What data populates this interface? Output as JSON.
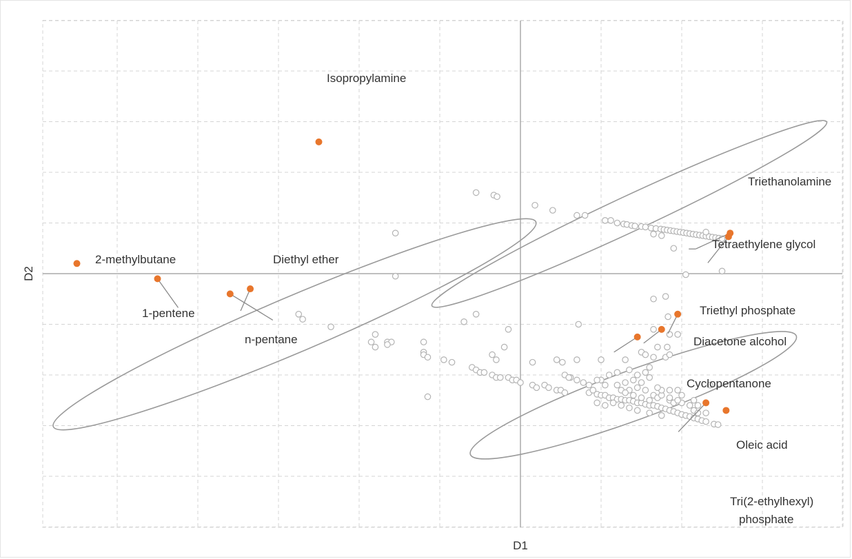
{
  "chart_data": {
    "type": "scatter",
    "xlabel": "D1",
    "ylabel": "D2",
    "xlim": [
      -5.8,
      4.0
    ],
    "ylim": [
      -3.2,
      3.2
    ],
    "grid": true,
    "colors": {
      "highlight": "#e8762c",
      "background_points": "#b3b3b3",
      "grid": "#d4d4d4",
      "axis": "#aaaaaa",
      "ellipse": "#9a9a9a",
      "leader": "#8a8a8a",
      "text": "#333333"
    },
    "highlighted_points": [
      {
        "label": "Isopropylamine",
        "x": -2.5,
        "y": 2.6
      },
      {
        "label": "2-methylbutane",
        "x": -5.5,
        "y": 0.2
      },
      {
        "label": "1-pentene",
        "x": -4.5,
        "y": -0.1
      },
      {
        "label": "Diethyl ether",
        "x": -3.35,
        "y": -0.3
      },
      {
        "label": "n-pentane",
        "x": -3.6,
        "y": -0.4
      },
      {
        "label": "Triethanolamine",
        "x": 2.6,
        "y": 0.8
      },
      {
        "label": "Tetraethylene glycol",
        "x": 2.58,
        "y": 0.73
      },
      {
        "label": "Triethyl phosphate",
        "x": 1.95,
        "y": -0.8
      },
      {
        "label": "Diacetone alcohol",
        "x": 1.75,
        "y": -1.1
      },
      {
        "label": "Cyclopentanone",
        "x": 1.45,
        "y": -1.25
      },
      {
        "label": "Oleic acid",
        "x": 2.3,
        "y": -2.55
      },
      {
        "label": "Tri(2-ethylhexyl) phosphate",
        "x": 2.55,
        "y": -2.7
      }
    ],
    "annotations": {
      "triethyl_phosphate": "Triethyl phosphate",
      "diacetone_alcohol": "Diacetone alcohol",
      "cyclopentanone": "Cyclopentanone",
      "oleic_acid": "Oleic acid",
      "tri_line1": "Tri(2-ethylhexyl)",
      "tri_line2": "phosphate"
    },
    "background_points": [
      [
        -0.55,
        1.6
      ],
      [
        -0.33,
        1.55
      ],
      [
        -0.29,
        1.52
      ],
      [
        0.18,
        1.35
      ],
      [
        0.4,
        1.25
      ],
      [
        0.7,
        1.15
      ],
      [
        0.8,
        1.15
      ],
      [
        1.05,
        1.05
      ],
      [
        1.12,
        1.05
      ],
      [
        1.2,
        1.0
      ],
      [
        1.28,
        0.98
      ],
      [
        1.32,
        0.97
      ],
      [
        1.38,
        0.95
      ],
      [
        1.42,
        0.94
      ],
      [
        1.5,
        0.93
      ],
      [
        1.55,
        0.92
      ],
      [
        1.62,
        0.9
      ],
      [
        1.68,
        0.89
      ],
      [
        1.74,
        0.88
      ],
      [
        1.78,
        0.87
      ],
      [
        1.82,
        0.86
      ],
      [
        1.86,
        0.85
      ],
      [
        1.9,
        0.84
      ],
      [
        1.94,
        0.83
      ],
      [
        1.98,
        0.82
      ],
      [
        2.02,
        0.81
      ],
      [
        2.06,
        0.8
      ],
      [
        2.1,
        0.79
      ],
      [
        2.14,
        0.78
      ],
      [
        2.18,
        0.77
      ],
      [
        2.22,
        0.76
      ],
      [
        2.26,
        0.75
      ],
      [
        2.3,
        0.74
      ],
      [
        2.34,
        0.73
      ],
      [
        2.38,
        0.72
      ],
      [
        2.42,
        0.71
      ],
      [
        2.46,
        0.7
      ],
      [
        2.5,
        0.69
      ],
      [
        1.9,
        0.5
      ],
      [
        1.75,
        0.75
      ],
      [
        1.65,
        0.78
      ],
      [
        2.3,
        0.82
      ],
      [
        2.05,
        -0.02
      ],
      [
        2.5,
        0.05
      ],
      [
        -1.55,
        0.8
      ],
      [
        -1.55,
        -0.05
      ],
      [
        -2.75,
        -0.8
      ],
      [
        -2.7,
        -0.9
      ],
      [
        -2.35,
        -1.05
      ],
      [
        -1.8,
        -1.2
      ],
      [
        -1.85,
        -1.35
      ],
      [
        -1.65,
        -1.35
      ],
      [
        -1.6,
        -1.35
      ],
      [
        -1.8,
        -1.45
      ],
      [
        -1.65,
        -1.4
      ],
      [
        -1.2,
        -1.35
      ],
      [
        -1.2,
        -1.55
      ],
      [
        -1.2,
        -1.6
      ],
      [
        -1.15,
        -1.65
      ],
      [
        -0.95,
        -1.7
      ],
      [
        -0.85,
        -1.75
      ],
      [
        -0.6,
        -1.85
      ],
      [
        -0.55,
        -1.9
      ],
      [
        -0.5,
        -1.95
      ],
      [
        -0.45,
        -1.95
      ],
      [
        -0.35,
        -2.0
      ],
      [
        -0.3,
        -2.05
      ],
      [
        -0.25,
        -2.05
      ],
      [
        -0.15,
        -2.05
      ],
      [
        -0.1,
        -2.1
      ],
      [
        -0.05,
        -2.1
      ],
      [
        0.0,
        -2.15
      ],
      [
        -0.35,
        -1.6
      ],
      [
        -0.3,
        -1.7
      ],
      [
        -0.7,
        -0.95
      ],
      [
        -0.15,
        -1.1
      ],
      [
        -0.2,
        -1.45
      ],
      [
        -1.15,
        -2.43
      ],
      [
        -0.55,
        -0.8
      ],
      [
        0.15,
        -1.75
      ],
      [
        0.45,
        -1.7
      ],
      [
        0.52,
        -1.75
      ],
      [
        0.7,
        -1.7
      ],
      [
        0.72,
        -1.0
      ],
      [
        1.0,
        -1.7
      ],
      [
        1.3,
        -1.7
      ],
      [
        1.5,
        -1.55
      ],
      [
        1.55,
        -1.6
      ],
      [
        1.65,
        -1.65
      ],
      [
        1.6,
        -1.85
      ],
      [
        1.55,
        -1.95
      ],
      [
        1.6,
        -2.05
      ],
      [
        1.8,
        -1.65
      ],
      [
        1.85,
        -1.6
      ],
      [
        1.7,
        -1.45
      ],
      [
        1.82,
        -1.45
      ],
      [
        1.65,
        -1.1
      ],
      [
        1.85,
        -1.2
      ],
      [
        1.95,
        -1.2
      ],
      [
        1.8,
        -0.45
      ],
      [
        1.65,
        -0.5
      ],
      [
        1.83,
        -0.85
      ],
      [
        0.15,
        -2.2
      ],
      [
        0.2,
        -2.25
      ],
      [
        0.3,
        -2.2
      ],
      [
        0.35,
        -2.25
      ],
      [
        0.45,
        -2.3
      ],
      [
        0.5,
        -2.3
      ],
      [
        0.55,
        -2.35
      ],
      [
        0.62,
        -2.05
      ],
      [
        0.7,
        -2.1
      ],
      [
        0.78,
        -2.15
      ],
      [
        0.85,
        -2.2
      ],
      [
        0.85,
        -2.35
      ],
      [
        0.9,
        -2.3
      ],
      [
        0.95,
        -2.38
      ],
      [
        1.0,
        -2.4
      ],
      [
        1.05,
        -2.4
      ],
      [
        1.1,
        -2.45
      ],
      [
        1.15,
        -2.45
      ],
      [
        1.2,
        -2.48
      ],
      [
        1.25,
        -2.48
      ],
      [
        1.3,
        -2.5
      ],
      [
        1.35,
        -2.5
      ],
      [
        1.4,
        -2.52
      ],
      [
        1.45,
        -2.55
      ],
      [
        1.5,
        -2.55
      ],
      [
        1.55,
        -2.58
      ],
      [
        1.6,
        -2.6
      ],
      [
        1.65,
        -2.6
      ],
      [
        1.7,
        -2.62
      ],
      [
        1.75,
        -2.65
      ],
      [
        1.8,
        -2.67
      ],
      [
        1.85,
        -2.7
      ],
      [
        1.9,
        -2.72
      ],
      [
        1.95,
        -2.75
      ],
      [
        2.0,
        -2.78
      ],
      [
        2.05,
        -2.8
      ],
      [
        2.1,
        -2.82
      ],
      [
        2.15,
        -2.85
      ],
      [
        2.2,
        -2.87
      ],
      [
        2.25,
        -2.9
      ],
      [
        2.3,
        -2.92
      ],
      [
        2.4,
        -2.97
      ],
      [
        2.45,
        -2.98
      ],
      [
        1.0,
        -2.1
      ],
      [
        1.05,
        -2.2
      ],
      [
        1.2,
        -2.2
      ],
      [
        1.25,
        -2.3
      ],
      [
        1.35,
        -2.3
      ],
      [
        1.45,
        -2.25
      ],
      [
        1.55,
        -2.3
      ],
      [
        1.65,
        -2.4
      ],
      [
        1.7,
        -2.45
      ],
      [
        1.75,
        -2.4
      ],
      [
        1.85,
        -2.5
      ],
      [
        1.9,
        -2.55
      ],
      [
        1.75,
        -2.3
      ],
      [
        1.85,
        -2.3
      ],
      [
        2.0,
        -2.55
      ],
      [
        2.1,
        -2.6
      ],
      [
        2.15,
        -2.5
      ],
      [
        1.3,
        -2.35
      ],
      [
        1.4,
        -2.4
      ],
      [
        1.15,
        -2.55
      ],
      [
        1.05,
        -2.6
      ],
      [
        0.95,
        -2.55
      ],
      [
        1.6,
        -2.5
      ],
      [
        1.5,
        -2.45
      ],
      [
        1.25,
        -2.6
      ],
      [
        1.35,
        -2.65
      ],
      [
        0.55,
        -2.0
      ],
      [
        0.6,
        -2.05
      ],
      [
        0.95,
        -2.1
      ],
      [
        1.1,
        -2.0
      ],
      [
        1.2,
        -1.95
      ],
      [
        1.35,
        -1.9
      ],
      [
        1.4,
        -2.1
      ],
      [
        2.35,
        -2.2
      ],
      [
        1.95,
        -2.3
      ],
      [
        2.0,
        -2.4
      ],
      [
        2.2,
        -2.6
      ],
      [
        2.15,
        -2.7
      ],
      [
        2.3,
        -2.75
      ],
      [
        1.45,
        -2.0
      ],
      [
        1.3,
        -2.15
      ],
      [
        1.5,
        -2.15
      ],
      [
        1.7,
        -2.25
      ],
      [
        1.85,
        -2.45
      ],
      [
        1.95,
        -2.5
      ],
      [
        2.2,
        -2.75
      ],
      [
        1.45,
        -2.7
      ],
      [
        1.6,
        -2.75
      ],
      [
        1.75,
        -2.8
      ]
    ],
    "ellipses": [
      {
        "name": "cluster-top-right",
        "cx": 1.35,
        "cy": 1.18,
        "rx": 2.7,
        "ry": 0.35,
        "angle_deg": -25
      },
      {
        "name": "cluster-left",
        "cx": -2.8,
        "cy": -1.0,
        "rx": 3.25,
        "ry": 0.55,
        "angle_deg": -23
      },
      {
        "name": "cluster-bottom-right",
        "cx": 1.4,
        "cy": -2.4,
        "rx": 2.15,
        "ry": 0.49,
        "angle_deg": -20
      }
    ]
  }
}
